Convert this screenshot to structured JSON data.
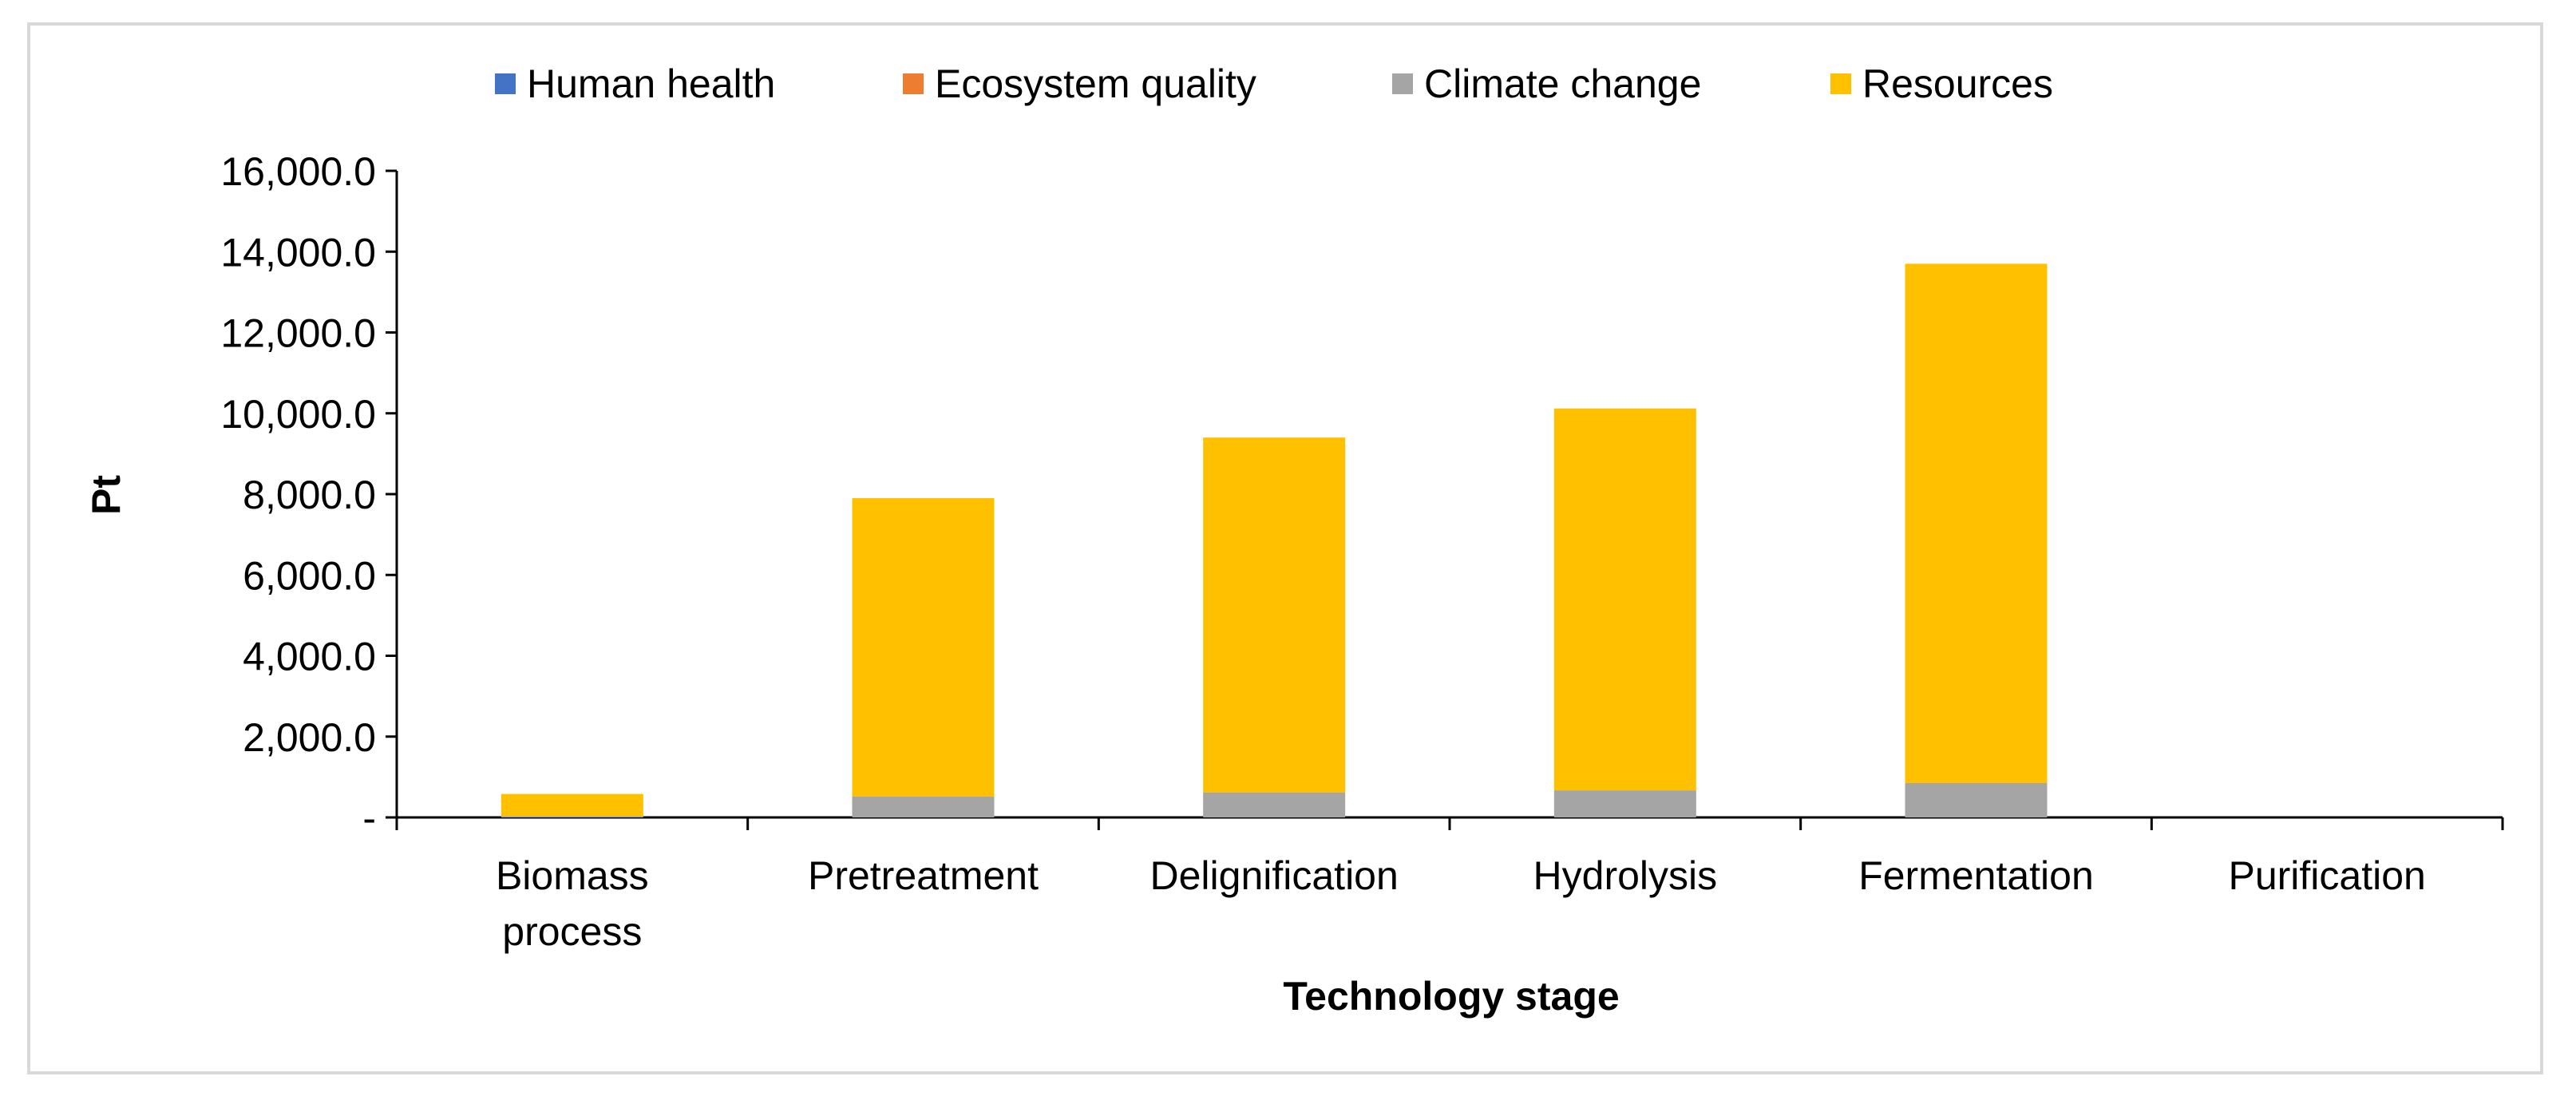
{
  "chart_data": {
    "type": "bar",
    "stacked": true,
    "categories": [
      "Biomass process",
      "Pretreatment",
      "Delignification",
      "Hydrolysis",
      "Fermentation",
      "Purification"
    ],
    "category_label_lines": [
      [
        "Biomass",
        "process"
      ],
      [
        "Pretreatment"
      ],
      [
        "Delignification"
      ],
      [
        "Hydrolysis"
      ],
      [
        "Fermentation"
      ],
      [
        "Purification"
      ]
    ],
    "series": [
      {
        "name": "Human health",
        "color": "#4472C4",
        "values": [
          0,
          0,
          0,
          0,
          0,
          0
        ]
      },
      {
        "name": "Ecosystem quality",
        "color": "#ED7D31",
        "values": [
          0,
          0,
          0,
          0,
          0,
          0
        ]
      },
      {
        "name": "Climate change",
        "color": "#A5A5A5",
        "values": [
          30,
          520,
          620,
          670,
          850,
          0
        ]
      },
      {
        "name": "Resources",
        "color": "#FFC000",
        "values": [
          550,
          7380,
          8780,
          9450,
          12850,
          0
        ]
      }
    ],
    "xlabel": "Technology stage",
    "ylabel": "Pt",
    "ylim": [
      0,
      16000
    ],
    "yticks": [
      0,
      2000,
      4000,
      6000,
      8000,
      10000,
      12000,
      14000,
      16000
    ],
    "ytick_labels": [
      "-",
      "2,000.0",
      "4,000.0",
      "6,000.0",
      "8,000.0",
      "10,000.0",
      "12,000.0",
      "14,000.0",
      "16,000.0"
    ],
    "legend_position": "top",
    "grid": false
  }
}
